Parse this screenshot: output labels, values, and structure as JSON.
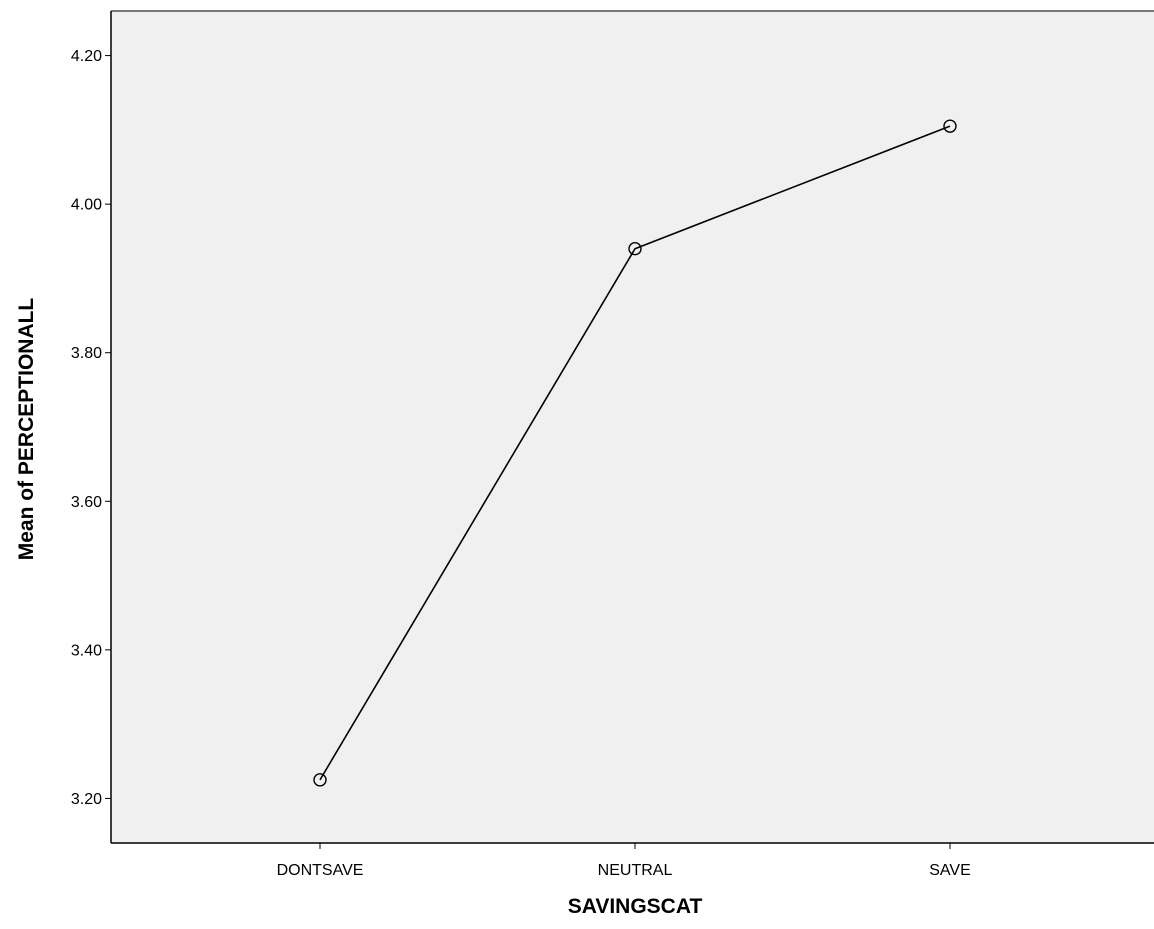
{
  "chart_data": {
    "type": "line",
    "title": "",
    "xlabel": "SAVINGSCAT",
    "ylabel": "Mean of PERCEPTIONALL",
    "categories": [
      "DONTSAVE",
      "NEUTRAL",
      "SAVE"
    ],
    "series": [
      {
        "values": [
          3.225,
          3.94,
          4.105
        ]
      }
    ],
    "ylim": [
      3.14,
      4.26
    ],
    "yticks": [
      "3.20",
      "3.40",
      "3.60",
      "3.80",
      "4.00",
      "4.20"
    ],
    "marker": "circle-open",
    "grid": false,
    "legend": "none",
    "colors": {
      "plot_background": "#f0f0f0",
      "line": "#000000",
      "frame": "#000000"
    }
  }
}
